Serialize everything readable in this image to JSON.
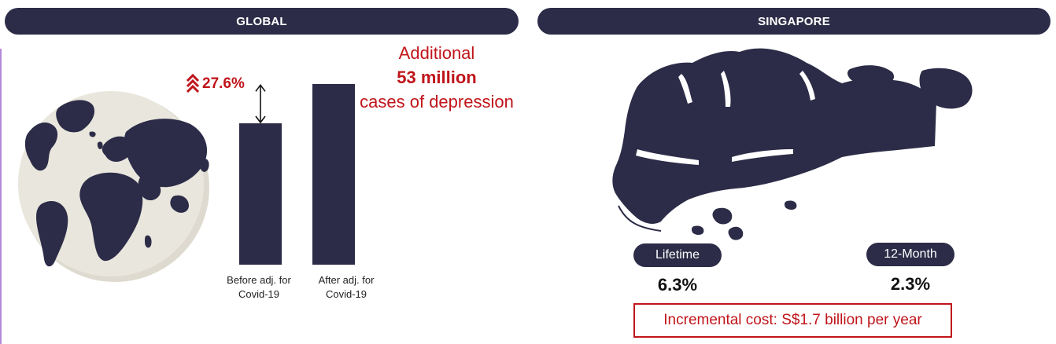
{
  "global": {
    "header": "GLOBAL",
    "increase_label": "27.6%",
    "callout_line1": "Additional",
    "callout_line2": "53 million",
    "callout_line3": "cases of depression"
  },
  "singapore": {
    "header": "SINGAPORE",
    "lifetime_label": "Lifetime",
    "lifetime_value": "6.3%",
    "twelve_month_label": "12-Month",
    "twelve_month_value": "2.3%",
    "cost_text": "Incremental cost: S$1.7 billion per year"
  },
  "chart_data": {
    "type": "bar",
    "categories": [
      "Before adj. for Covid-19",
      "After adj. for Covid-19"
    ],
    "category_lines": [
      [
        "Before adj. for",
        "Covid-19"
      ],
      [
        "After adj. for",
        "Covid-19"
      ]
    ],
    "values": [
      100,
      127.6
    ],
    "value_basis": "relative, before = 100",
    "annotation": "27.6%",
    "title": "",
    "xlabel": "",
    "ylabel": "",
    "color": "#2c2c48"
  },
  "colors": {
    "navy": "#2c2c48",
    "accent_red": "#c0151b",
    "globe": "#e8e5dc"
  },
  "icons": [
    "globe-icon",
    "singapore-map-icon",
    "double-chevron-up-icon",
    "double-arrow-icon"
  ]
}
